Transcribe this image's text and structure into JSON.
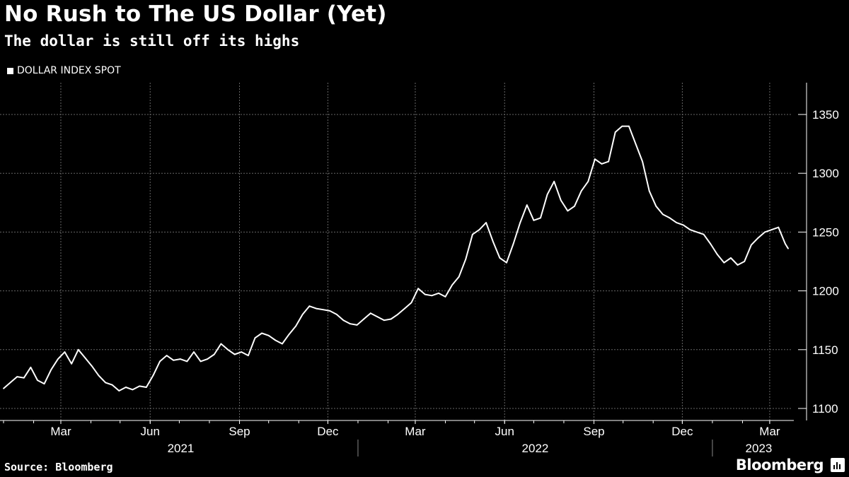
{
  "title": "No Rush to The US Dollar (Yet)",
  "subtitle": "The dollar is still off its highs",
  "source": "Source: Bloomberg",
  "brand": "Bloomberg",
  "brand_icon": "bloomberg-chart-icon",
  "colors": {
    "background": "#000000",
    "line": "#ffffff",
    "grid": "#666666"
  },
  "chart_data": {
    "type": "line",
    "title": "No Rush to The US Dollar (Yet)",
    "subtitle": "The dollar is still off its highs",
    "legend": {
      "position": "top-left",
      "entries": [
        "DOLLAR INDEX SPOT"
      ]
    },
    "xlabel": "",
    "ylabel": "",
    "ylim": [
      1090,
      1350
    ],
    "yticks": [
      1100,
      1150,
      1200,
      1250,
      1300,
      1350
    ],
    "y_axis_side": "right",
    "grid": true,
    "xlim": [
      "2021-01-01",
      "2023-03-20"
    ],
    "x_month_ticks": [
      {
        "date": "2021-03-01",
        "label": "Mar"
      },
      {
        "date": "2021-06-01",
        "label": "Jun"
      },
      {
        "date": "2021-09-01",
        "label": "Sep"
      },
      {
        "date": "2021-12-01",
        "label": "Dec"
      },
      {
        "date": "2022-03-01",
        "label": "Mar"
      },
      {
        "date": "2022-06-01",
        "label": "Jun"
      },
      {
        "date": "2022-09-01",
        "label": "Sep"
      },
      {
        "date": "2022-12-01",
        "label": "Dec"
      },
      {
        "date": "2023-03-01",
        "label": "Mar"
      }
    ],
    "x_year_labels": [
      {
        "label": "2021",
        "start": "2021-01-01"
      },
      {
        "label": "2022",
        "start": "2022-01-01"
      },
      {
        "label": "2023",
        "start": "2023-01-01"
      }
    ],
    "series": [
      {
        "name": "DOLLAR INDEX SPOT",
        "x": [
          "2021-01-01",
          "2021-01-08",
          "2021-01-15",
          "2021-01-22",
          "2021-01-29",
          "2021-02-05",
          "2021-02-12",
          "2021-02-19",
          "2021-02-26",
          "2021-03-05",
          "2021-03-12",
          "2021-03-19",
          "2021-03-26",
          "2021-04-02",
          "2021-04-09",
          "2021-04-16",
          "2021-04-23",
          "2021-04-30",
          "2021-05-07",
          "2021-05-14",
          "2021-05-21",
          "2021-05-28",
          "2021-06-04",
          "2021-06-11",
          "2021-06-18",
          "2021-06-25",
          "2021-07-02",
          "2021-07-09",
          "2021-07-16",
          "2021-07-23",
          "2021-07-30",
          "2021-08-06",
          "2021-08-13",
          "2021-08-20",
          "2021-08-27",
          "2021-09-03",
          "2021-09-10",
          "2021-09-17",
          "2021-09-24",
          "2021-10-01",
          "2021-10-08",
          "2021-10-15",
          "2021-10-22",
          "2021-10-29",
          "2021-11-05",
          "2021-11-12",
          "2021-11-19",
          "2021-11-26",
          "2021-12-03",
          "2021-12-10",
          "2021-12-17",
          "2021-12-24",
          "2021-12-31",
          "2022-01-07",
          "2022-01-14",
          "2022-01-21",
          "2022-01-28",
          "2022-02-04",
          "2022-02-11",
          "2022-02-18",
          "2022-02-25",
          "2022-03-04",
          "2022-03-11",
          "2022-03-18",
          "2022-03-25",
          "2022-04-01",
          "2022-04-08",
          "2022-04-15",
          "2022-04-22",
          "2022-04-29",
          "2022-05-06",
          "2022-05-13",
          "2022-05-20",
          "2022-05-27",
          "2022-06-03",
          "2022-06-10",
          "2022-06-17",
          "2022-06-24",
          "2022-07-01",
          "2022-07-08",
          "2022-07-15",
          "2022-07-22",
          "2022-07-29",
          "2022-08-05",
          "2022-08-12",
          "2022-08-19",
          "2022-08-26",
          "2022-09-02",
          "2022-09-09",
          "2022-09-16",
          "2022-09-23",
          "2022-09-30",
          "2022-10-07",
          "2022-10-14",
          "2022-10-21",
          "2022-10-28",
          "2022-11-04",
          "2022-11-11",
          "2022-11-18",
          "2022-11-25",
          "2022-12-02",
          "2022-12-09",
          "2022-12-16",
          "2022-12-23",
          "2022-12-30",
          "2023-01-06",
          "2023-01-13",
          "2023-01-20",
          "2023-01-27",
          "2023-02-03",
          "2023-02-10",
          "2023-02-17",
          "2023-02-24",
          "2023-03-03",
          "2023-03-10",
          "2023-03-17",
          "2023-03-20"
        ],
        "values": [
          1117,
          1122,
          1127,
          1126,
          1135,
          1124,
          1121,
          1133,
          1142,
          1148,
          1138,
          1150,
          1143,
          1136,
          1128,
          1122,
          1120,
          1115,
          1118,
          1116,
          1119,
          1118,
          1128,
          1140,
          1145,
          1141,
          1142,
          1140,
          1148,
          1140,
          1142,
          1146,
          1155,
          1150,
          1146,
          1148,
          1145,
          1160,
          1164,
          1162,
          1158,
          1155,
          1163,
          1170,
          1180,
          1187,
          1185,
          1184,
          1183,
          1180,
          1175,
          1172,
          1171,
          1176,
          1181,
          1178,
          1175,
          1176,
          1180,
          1185,
          1190,
          1202,
          1197,
          1196,
          1198,
          1195,
          1205,
          1212,
          1227,
          1248,
          1252,
          1258,
          1242,
          1228,
          1224,
          1240,
          1258,
          1273,
          1260,
          1262,
          1282,
          1293,
          1277,
          1268,
          1272,
          1285,
          1293,
          1312,
          1308,
          1310,
          1335,
          1340,
          1340,
          1325,
          1310,
          1285,
          1272,
          1265,
          1262,
          1258,
          1256,
          1252,
          1250,
          1248,
          1240,
          1231,
          1224,
          1228,
          1222,
          1225,
          1239,
          1245,
          1250,
          1252,
          1254,
          1240,
          1236
        ]
      }
    ]
  }
}
